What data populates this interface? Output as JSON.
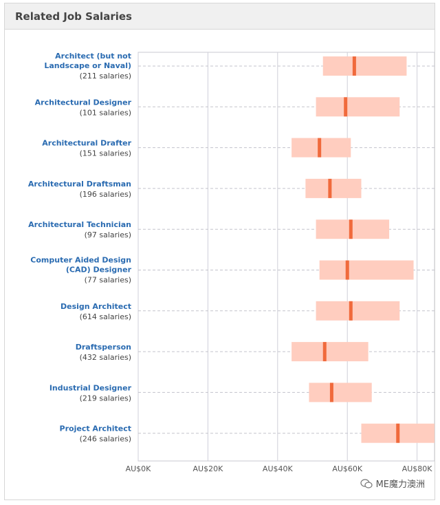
{
  "header": {
    "title": "Related Job Salaries"
  },
  "watermark": {
    "text": "ME魔力澳洲"
  },
  "chart_data": {
    "type": "range",
    "title": "Related Job Salaries",
    "xaxis": {
      "min": 0,
      "max": 85000,
      "ticks": [
        0,
        20000,
        40000,
        60000,
        80000
      ],
      "tick_labels": [
        "AU$0K",
        "AU$20K",
        "AU$40K",
        "AU$60K",
        "AU$80K"
      ]
    },
    "colors": {
      "range": "#ffcdbf",
      "median": "#f06a3c",
      "grid": "#cfcfd8",
      "title": "#2a6bb1"
    },
    "jobs": [
      {
        "title_lines": [
          "Architect (but not",
          "Landscape or Naval)"
        ],
        "count": "(211 salaries)",
        "low": 53000,
        "high": 77000,
        "median": 62000
      },
      {
        "title_lines": [
          "Architectural Designer"
        ],
        "count": "(101 salaries)",
        "low": 51000,
        "high": 75000,
        "median": 59500
      },
      {
        "title_lines": [
          "Architectural Drafter"
        ],
        "count": "(151 salaries)",
        "low": 44000,
        "high": 61000,
        "median": 52000
      },
      {
        "title_lines": [
          "Architectural Draftsman"
        ],
        "count": "(196 salaries)",
        "low": 48000,
        "high": 64000,
        "median": 55000
      },
      {
        "title_lines": [
          "Architectural Technician"
        ],
        "count": "(97 salaries)",
        "low": 51000,
        "high": 72000,
        "median": 61000
      },
      {
        "title_lines": [
          "Computer Aided Design",
          "(CAD) Designer"
        ],
        "count": "(77 salaries)",
        "low": 52000,
        "high": 79000,
        "median": 60000
      },
      {
        "title_lines": [
          "Design Architect"
        ],
        "count": "(614 salaries)",
        "low": 51000,
        "high": 75000,
        "median": 61000
      },
      {
        "title_lines": [
          "Draftsperson"
        ],
        "count": "(432 salaries)",
        "low": 44000,
        "high": 66000,
        "median": 53500
      },
      {
        "title_lines": [
          "Industrial Designer"
        ],
        "count": "(219 salaries)",
        "low": 49000,
        "high": 67000,
        "median": 55500
      },
      {
        "title_lines": [
          "Project Architect"
        ],
        "count": "(246 salaries)",
        "low": 64000,
        "high": 85000,
        "median": 74500
      }
    ]
  }
}
